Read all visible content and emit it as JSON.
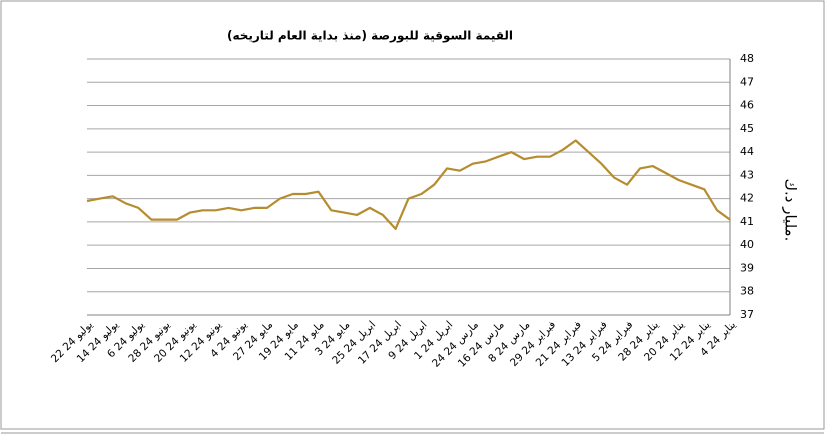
{
  "chart_data": {
    "type": "line",
    "title": "القيمة السوقية للبورصة (منذ بداية العام لتاريخه)",
    "y_label": "مليار د.ك.",
    "categories": [
      "4 يناير 24",
      null,
      "12 يناير 24",
      null,
      "20 يناير 24",
      null,
      "28 يناير 24",
      null,
      "5 فبراير 24",
      null,
      "13 فبراير 24",
      null,
      "21 فبراير 24",
      null,
      "29 فبراير 24",
      null,
      "8 مارس 24",
      null,
      "16 مارس 24",
      null,
      "24 مارس 24",
      null,
      "1 ابريل 24",
      null,
      "9 ابريل 24",
      null,
      "17 ابريل 24",
      null,
      "25 ابريل 24",
      null,
      "3 مايو 24",
      null,
      "11 مايو 24",
      null,
      "19 مايو 24",
      null,
      "27 مايو 24",
      null,
      "4 يونيو 24",
      null,
      "12 يونيو 24",
      null,
      "20 يونيو 24",
      null,
      "28 يونيو 24",
      null,
      "6 يوليو 24",
      null,
      "14 يوليو 24",
      null,
      "22 يوليو 24"
    ],
    "values": [
      41.1,
      41.5,
      42.4,
      42.6,
      42.8,
      43.1,
      43.4,
      43.3,
      42.6,
      42.9,
      43.5,
      44.0,
      44.5,
      44.1,
      43.8,
      43.8,
      43.7,
      44.0,
      43.8,
      43.6,
      43.5,
      43.2,
      43.3,
      42.6,
      42.2,
      42.0,
      40.7,
      41.3,
      41.6,
      41.3,
      41.4,
      41.5,
      42.3,
      42.2,
      42.2,
      42.0,
      41.6,
      41.6,
      41.5,
      41.6,
      41.5,
      41.5,
      41.4,
      41.1,
      41.1,
      41.1,
      41.6,
      41.8,
      42.1,
      42.0,
      41.9
    ],
    "color": "#b58c2f",
    "x_reversed": true,
    "ylim": [
      37,
      48
    ],
    "yticks": [
      37,
      38,
      39,
      40,
      41,
      42,
      43,
      44,
      45,
      46,
      47,
      48
    ],
    "grid": true
  }
}
